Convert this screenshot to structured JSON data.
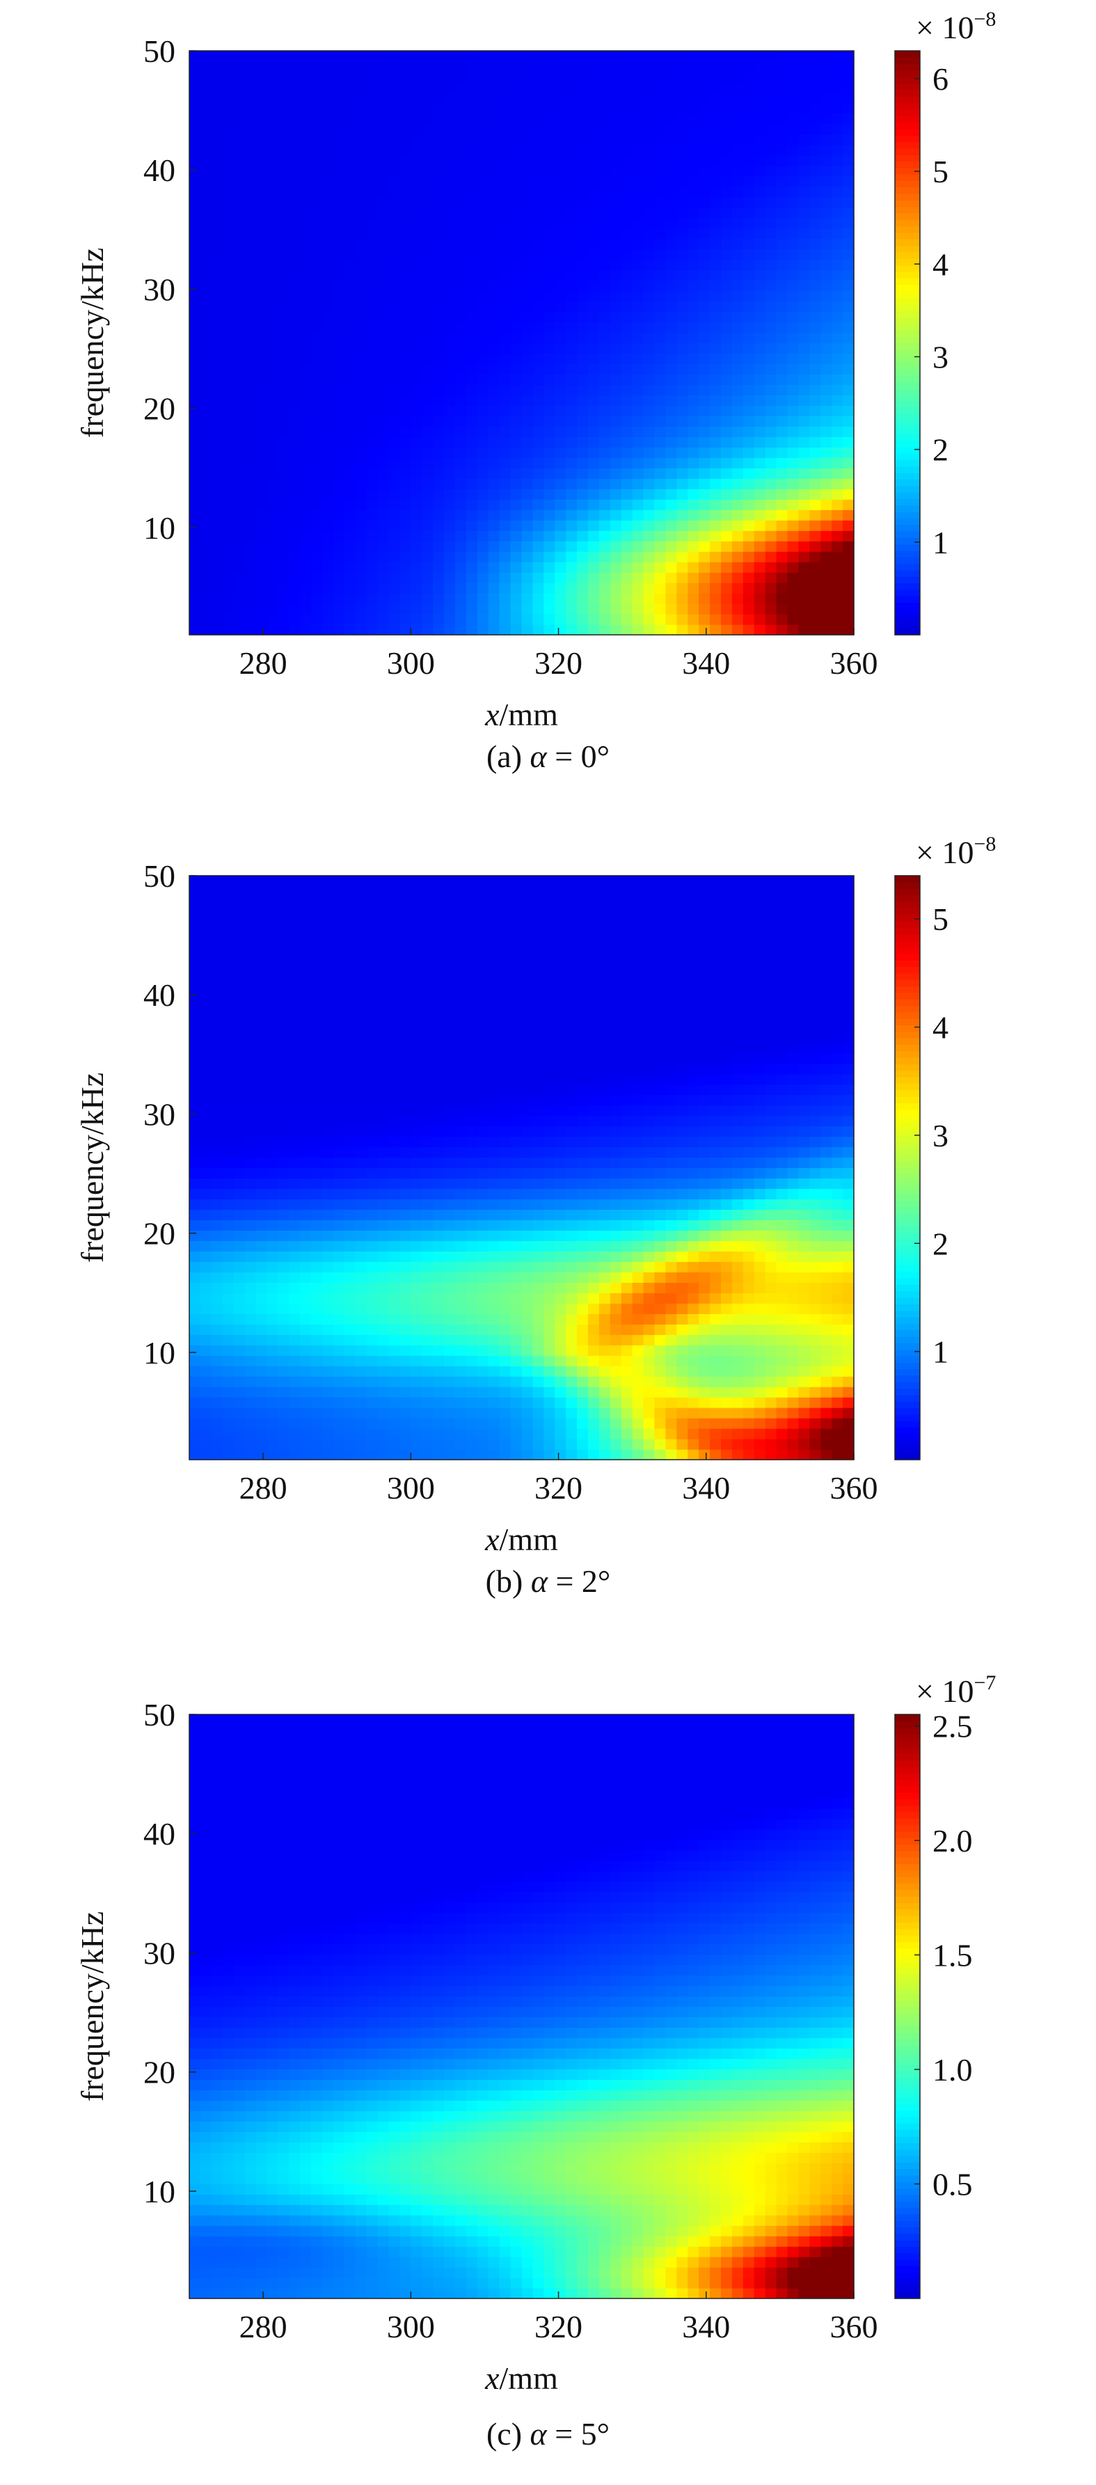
{
  "chart_data": [
    {
      "type": "heatmap",
      "title": "",
      "caption_prefix": "(a) ",
      "caption_symbol": "α",
      "caption_suffix": " = 0°",
      "xlabel_var": "x",
      "xlabel_unit": "/mm",
      "ylabel": "frequency/kHz",
      "xlim": [
        270,
        360
      ],
      "ylim": [
        1,
        50
      ],
      "xticks": [
        "280",
        "300",
        "320",
        "340",
        "360"
      ],
      "yticks": [
        "10",
        "20",
        "30",
        "40",
        "50"
      ],
      "colorbar": {
        "range": [
          0,
          6.3
        ],
        "ticks": [
          "1",
          "2",
          "3",
          "4",
          "5",
          "6"
        ],
        "tick_values": [
          1,
          2,
          3,
          4,
          5,
          6
        ],
        "multiplier_base": "× 10",
        "multiplier_exp": "−8"
      },
      "colormap": "jet",
      "pattern": {
        "type": "lowband",
        "peak_x": 360,
        "peak_f": 3,
        "description_values": {
          "max_value": 6.2,
          "hot_region_x": [
            340,
            360
          ],
          "hot_region_f": [
            1,
            7
          ]
        }
      }
    },
    {
      "type": "heatmap",
      "title": "",
      "caption_prefix": "(b) ",
      "caption_symbol": "α",
      "caption_suffix": " = 2°",
      "xlabel_var": "x",
      "xlabel_unit": "/mm",
      "ylabel": "frequency/kHz",
      "xlim": [
        270,
        360
      ],
      "ylim": [
        1,
        50
      ],
      "xticks": [
        "280",
        "300",
        "320",
        "340",
        "360"
      ],
      "yticks": [
        "10",
        "20",
        "30",
        "40",
        "50"
      ],
      "colorbar": {
        "range": [
          0,
          5.4
        ],
        "ticks": [
          "1",
          "2",
          "3",
          "4",
          "5"
        ],
        "tick_values": [
          1,
          2,
          3,
          4,
          5
        ],
        "multiplier_base": "× 10",
        "multiplier_exp": "−8"
      },
      "colormap": "jet",
      "pattern": {
        "type": "twoband",
        "description_values": {
          "max_value": 5.3,
          "hot_region_x": [
            340,
            360
          ],
          "hot_region_f": [
            1,
            6
          ],
          "midband_f": [
            12,
            20
          ]
        }
      }
    },
    {
      "type": "heatmap",
      "title": "",
      "caption_prefix": "(c) ",
      "caption_symbol": "α",
      "caption_suffix": " = 5°",
      "xlabel_var": "x",
      "xlabel_unit": "/mm",
      "ylabel": "frequency/kHz",
      "xlim": [
        270,
        360
      ],
      "ylim": [
        1,
        50
      ],
      "xticks": [
        "280",
        "300",
        "320",
        "340",
        "360"
      ],
      "yticks": [
        "10",
        "20",
        "30",
        "40",
        "50"
      ],
      "colorbar": {
        "range": [
          0,
          2.55
        ],
        "ticks": [
          "0.5",
          "1.0",
          "1.5",
          "2.0",
          "2.5"
        ],
        "tick_values": [
          0.5,
          1.0,
          1.5,
          2.0,
          2.5
        ],
        "multiplier_base": "× 10",
        "multiplier_exp": "−7"
      },
      "colormap": "jet",
      "pattern": {
        "type": "broad",
        "description_values": {
          "max_value": 2.5,
          "hot_region_x": [
            340,
            360
          ],
          "hot_region_f": [
            1,
            4
          ],
          "midband_f": [
            6,
            20
          ]
        }
      }
    }
  ]
}
